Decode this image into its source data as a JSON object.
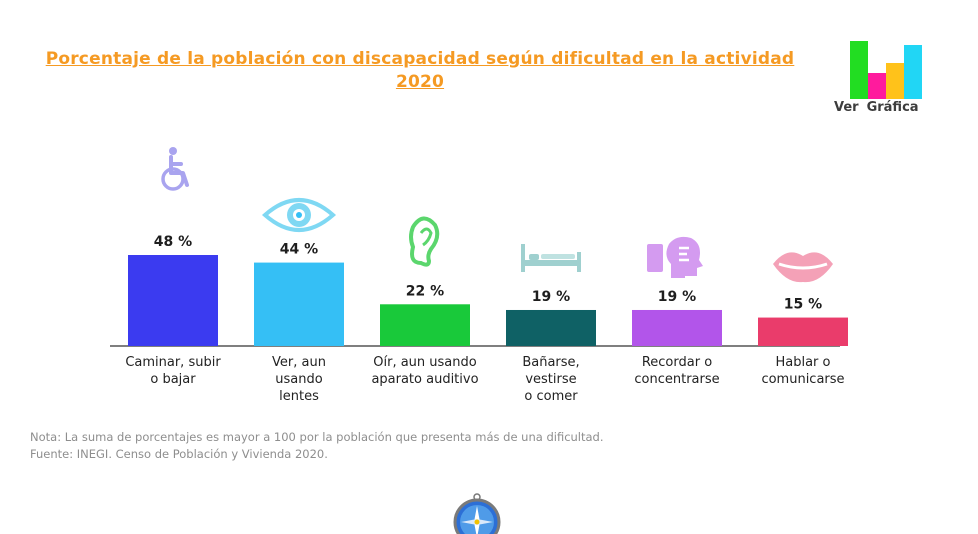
{
  "title": "Porcentaje de la población con discapacidad según dificultad en la actividad 2020",
  "ver_grafica": {
    "word1": "Ver",
    "word2": "Gráfica"
  },
  "logo_colors": [
    "#22dd22",
    "#ff1b9d",
    "#ffc21a",
    "#21d6f5"
  ],
  "chart_data": {
    "type": "bar",
    "title": "Porcentaje de la población con discapacidad según dificultad en la actividad 2020",
    "categories": [
      "Caminar, subir\no bajar",
      "Ver, aun\nusando\nlentes",
      "Oír, aun usando\naparato auditivo",
      "Bañarse,\nvestirse\no comer",
      "Recordar o\nconcentrarse",
      "Hablar o\ncomunicarse"
    ],
    "values": [
      48,
      44,
      22,
      19,
      19,
      15
    ],
    "value_labels": [
      "48 %",
      "44 %",
      "22 %",
      "19 %",
      "19 %",
      "15 %"
    ],
    "colors": [
      "#3b3bf0",
      "#35bff5",
      "#19c93a",
      "#0f6165",
      "#b255ea",
      "#ea3c6b"
    ],
    "icons": [
      "wheelchair-icon",
      "eye-icon",
      "ear-icon",
      "bed-icon",
      "memory-head-icon",
      "lips-icon"
    ],
    "ylim": [
      0,
      48
    ],
    "xlabel": "",
    "ylabel": "",
    "grid": false,
    "legend": "none"
  },
  "note": "Nota: La suma de porcentajes es mayor a 100 por la población que presenta más de una dificultad.",
  "source": "Fuente: INEGI. Censo de Población y Vivienda 2020."
}
